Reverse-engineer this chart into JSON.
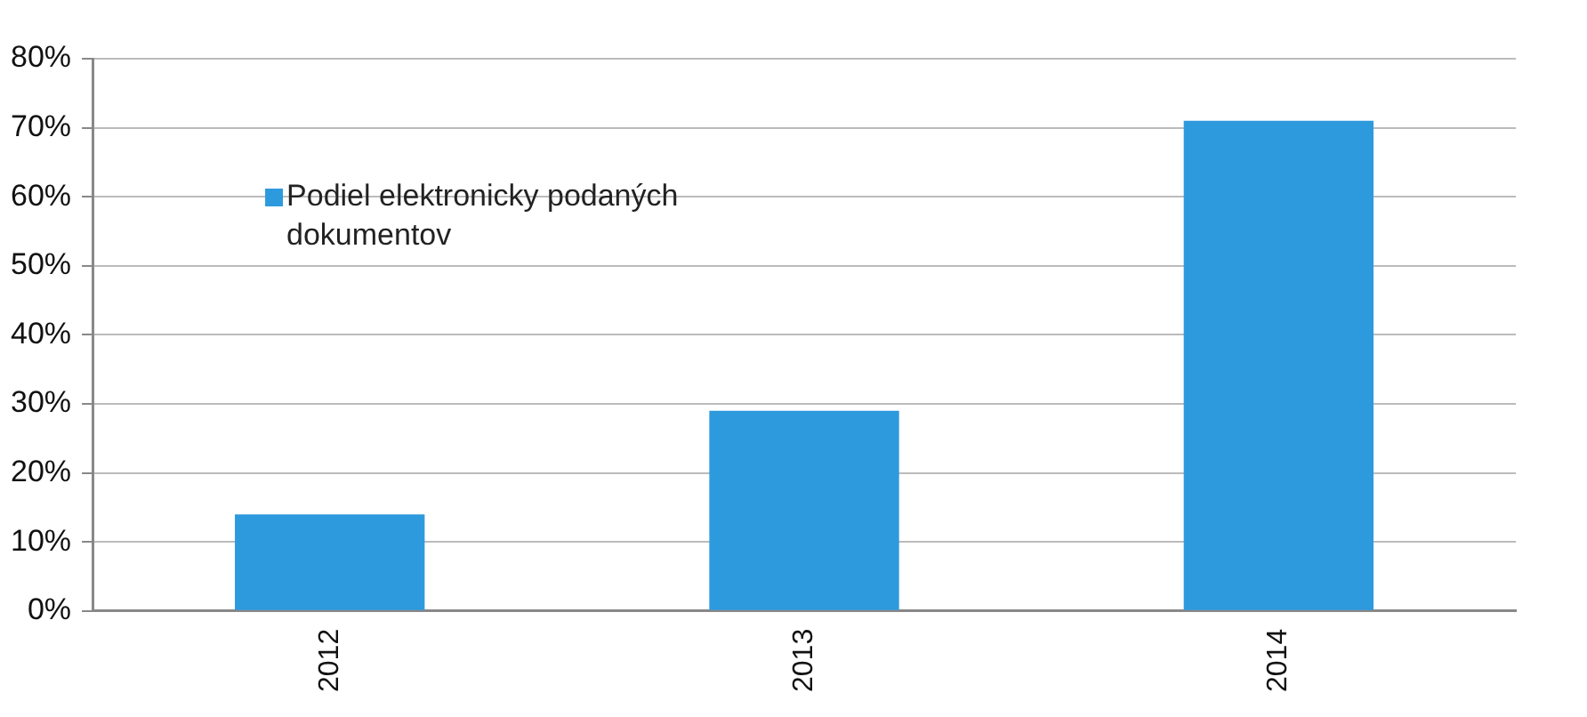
{
  "chart_data": {
    "type": "bar",
    "categories": [
      "2012",
      "2013",
      "2014"
    ],
    "series": [
      {
        "name": "Podiel elektronicky podaných dokumentov",
        "color": "#2e9ade",
        "values": [
          14,
          29,
          71
        ]
      }
    ],
    "ylim": [
      0,
      80
    ],
    "yticks": [
      {
        "value": 0,
        "label": "0%"
      },
      {
        "value": 10,
        "label": "10%"
      },
      {
        "value": 20,
        "label": "20%"
      },
      {
        "value": 30,
        "label": "30%"
      },
      {
        "value": 40,
        "label": "40%"
      },
      {
        "value": 50,
        "label": "50%"
      },
      {
        "value": 60,
        "label": "60%"
      },
      {
        "value": 70,
        "label": "70%"
      },
      {
        "value": 80,
        "label": "80%"
      }
    ],
    "grid": "y",
    "legend": "left"
  }
}
